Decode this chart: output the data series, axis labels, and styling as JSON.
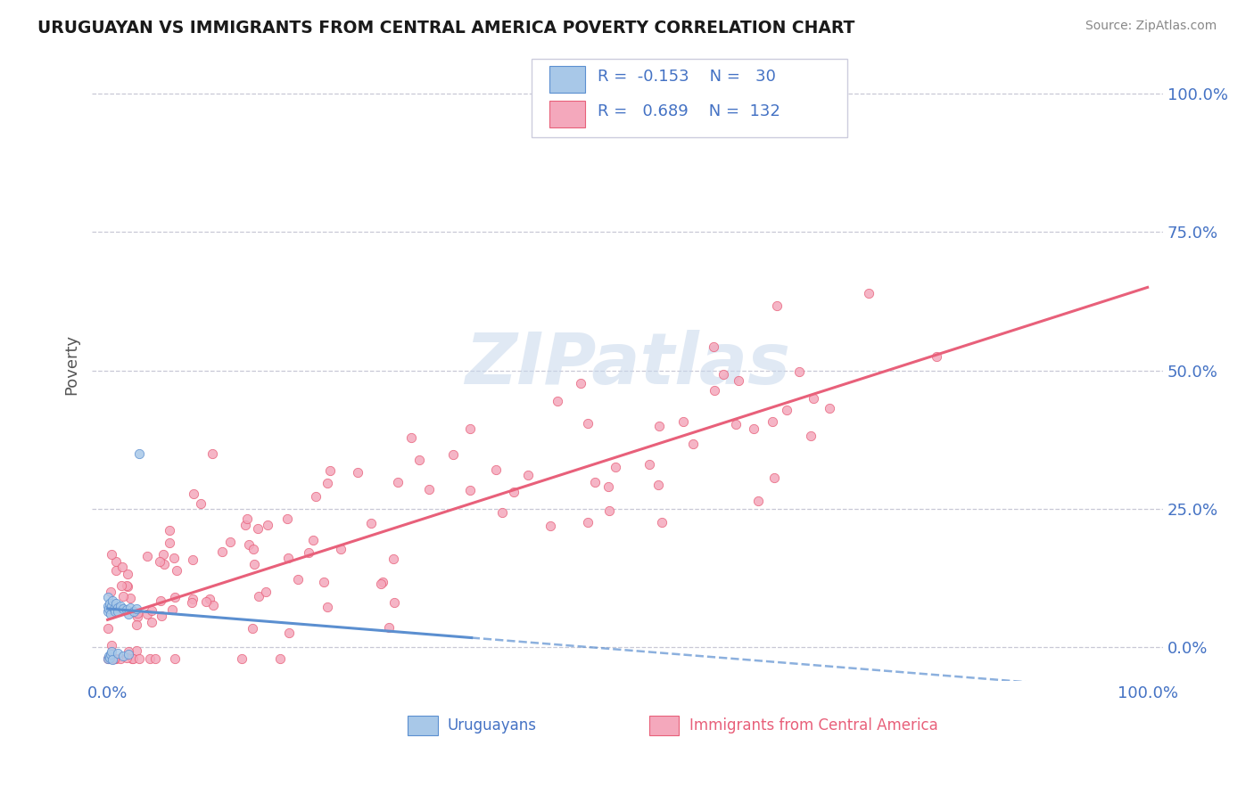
{
  "title": "URUGUAYAN VS IMMIGRANTS FROM CENTRAL AMERICA POVERTY CORRELATION CHART",
  "source": "Source: ZipAtlas.com",
  "ylabel": "Poverty",
  "legend_label1": "Uruguayans",
  "legend_label2": "Immigrants from Central America",
  "R1": -0.153,
  "N1": 30,
  "R2": 0.689,
  "N2": 132,
  "color_blue": "#A8C8E8",
  "color_pink": "#F4A8BC",
  "color_blue_line": "#5B8FD0",
  "color_pink_line": "#E8607A",
  "watermark_color": "#C8D8EC",
  "background": "#FFFFFF",
  "ytick_vals": [
    0.0,
    0.25,
    0.5,
    0.75,
    1.0
  ],
  "ytick_labels": [
    "0.0%",
    "25.0%",
    "50.0%",
    "75.0%",
    "100.0%"
  ],
  "legend_text_color": "#4472C4",
  "axis_label_color": "#4472C4",
  "grid_color": "#BBBBCC",
  "title_color": "#1A1A1A",
  "source_color": "#888888",
  "ylabel_color": "#555555"
}
